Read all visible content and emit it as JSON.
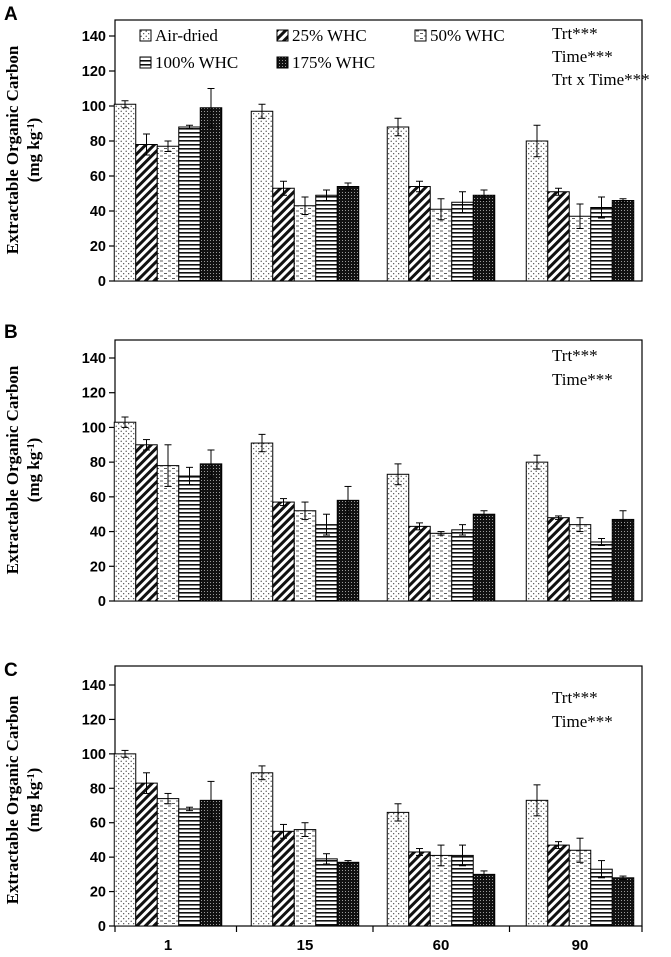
{
  "chart_data": [
    {
      "type": "bar",
      "panel": "A",
      "ylabel_line1": "Extractable Organic Carbon",
      "ylabel_line2_prefix": "(mg kg",
      "ylabel_line2_sup": "-1",
      "ylabel_line2_suffix": ")",
      "ylim": [
        0,
        140
      ],
      "yticks": [
        "0",
        "20",
        "40",
        "60",
        "80",
        "100",
        "120",
        "140"
      ],
      "categories": [
        "1",
        "15",
        "60",
        "90"
      ],
      "series": [
        {
          "name": "Air-dried",
          "values": [
            101,
            97,
            88,
            80
          ],
          "errors": [
            2,
            4,
            5,
            9
          ]
        },
        {
          "name": "25% WHC",
          "values": [
            78,
            53,
            54,
            51
          ],
          "errors": [
            6,
            4,
            3,
            2
          ]
        },
        {
          "name": "50% WHC",
          "values": [
            77,
            43,
            41,
            37
          ],
          "errors": [
            3,
            5,
            6,
            7
          ]
        },
        {
          "name": "100% WHC",
          "values": [
            88,
            49,
            45,
            42
          ],
          "errors": [
            1,
            3,
            6,
            6
          ]
        },
        {
          "name": "175% WHC",
          "values": [
            99,
            54,
            49,
            46
          ],
          "errors": [
            11,
            2,
            3,
            1
          ]
        }
      ],
      "annotations": [
        "Trt***",
        "Time***",
        "Trt x Time***"
      ],
      "show_legend": true
    },
    {
      "type": "bar",
      "panel": "B",
      "ylabel_line1": "Extractable Organic Carbon",
      "ylabel_line2_prefix": "(mg kg",
      "ylabel_line2_sup": "-1",
      "ylabel_line2_suffix": ")",
      "ylim": [
        0,
        140
      ],
      "yticks": [
        "0",
        "20",
        "40",
        "60",
        "80",
        "100",
        "120",
        "140"
      ],
      "categories": [
        "1",
        "15",
        "60",
        "90"
      ],
      "series": [
        {
          "name": "Air-dried",
          "values": [
            103,
            91,
            73,
            80
          ],
          "errors": [
            3,
            5,
            6,
            4
          ]
        },
        {
          "name": "25% WHC",
          "values": [
            90,
            57,
            43,
            48
          ],
          "errors": [
            3,
            2,
            2,
            1
          ]
        },
        {
          "name": "50% WHC",
          "values": [
            78,
            52,
            39,
            44
          ],
          "errors": [
            12,
            5,
            1,
            4
          ]
        },
        {
          "name": "100% WHC",
          "values": [
            72,
            44,
            41,
            34
          ],
          "errors": [
            5,
            6,
            3,
            2
          ]
        },
        {
          "name": "175% WHC",
          "values": [
            79,
            58,
            50,
            47
          ],
          "errors": [
            8,
            8,
            2,
            5
          ]
        }
      ],
      "annotations": [
        "Trt***",
        "Time***"
      ],
      "show_legend": false
    },
    {
      "type": "bar",
      "panel": "C",
      "ylabel_line1": "Extractable Organic Carbon",
      "ylabel_line2_prefix": "(mg kg",
      "ylabel_line2_sup": "-1",
      "ylabel_line2_suffix": ")",
      "ylim": [
        0,
        140
      ],
      "yticks": [
        "0",
        "20",
        "40",
        "60",
        "80",
        "100",
        "120",
        "140"
      ],
      "categories": [
        "1",
        "15",
        "60",
        "90"
      ],
      "series": [
        {
          "name": "Air-dried",
          "values": [
            100,
            89,
            66,
            73
          ],
          "errors": [
            2,
            4,
            5,
            9
          ]
        },
        {
          "name": "25% WHC",
          "values": [
            83,
            55,
            43,
            47
          ],
          "errors": [
            6,
            4,
            2,
            2
          ]
        },
        {
          "name": "50% WHC",
          "values": [
            74,
            56,
            41,
            44
          ],
          "errors": [
            3,
            4,
            6,
            7
          ]
        },
        {
          "name": "100% WHC",
          "values": [
            68,
            39,
            41,
            33
          ],
          "errors": [
            1,
            3,
            6,
            5
          ]
        },
        {
          "name": "175% WHC",
          "values": [
            73,
            37,
            30,
            28
          ],
          "errors": [
            11,
            1,
            2,
            1
          ]
        }
      ],
      "annotations": [
        "Trt***",
        "Time***"
      ],
      "show_legend": false
    }
  ]
}
